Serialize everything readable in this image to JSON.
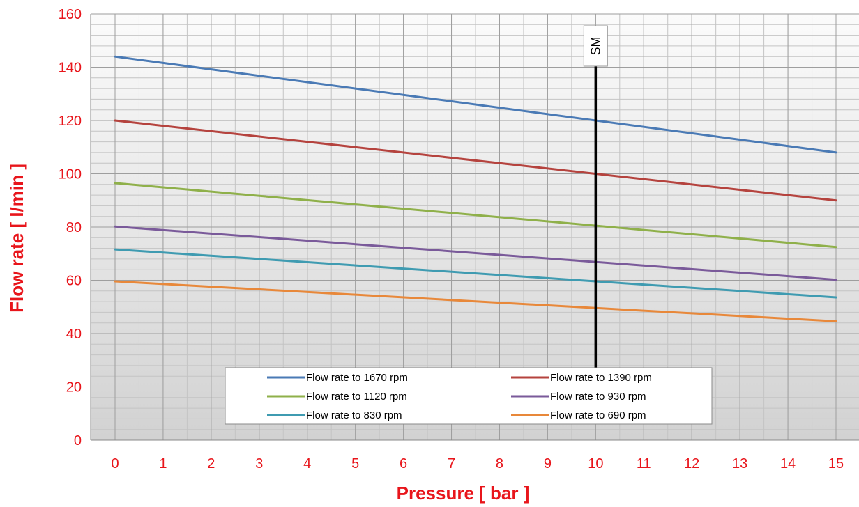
{
  "chart_data": {
    "type": "line",
    "title": "",
    "xlabel": "Pressure [ bar ]",
    "ylabel": "Flow rate [ l/min ]",
    "xlim": [
      0,
      15
    ],
    "ylim": [
      0,
      160
    ],
    "x_ticks": [
      0,
      1,
      2,
      3,
      4,
      5,
      6,
      7,
      8,
      9,
      10,
      11,
      12,
      13,
      14,
      15
    ],
    "y_ticks": [
      0,
      20,
      40,
      60,
      80,
      100,
      120,
      140,
      160
    ],
    "grid": true,
    "legend_position": "bottom-center inside plot",
    "series": [
      {
        "name": "Flow rate to 1670 rpm",
        "color": "#4a7ab5",
        "x": [
          0,
          15
        ],
        "y": [
          144,
          108
        ]
      },
      {
        "name": "Flow rate to 1390 rpm",
        "color": "#b5433e",
        "x": [
          0,
          15
        ],
        "y": [
          120,
          90
        ]
      },
      {
        "name": "Flow rate to 1120 rpm",
        "color": "#8fb04a",
        "x": [
          0,
          15
        ],
        "y": [
          96.5,
          72.5
        ]
      },
      {
        "name": "Flow rate to 930 rpm",
        "color": "#7a5a9a",
        "x": [
          0,
          15
        ],
        "y": [
          80.2,
          60.2
        ]
      },
      {
        "name": "Flow rate to 830 rpm",
        "color": "#3f9bb1",
        "x": [
          0,
          15
        ],
        "y": [
          71.6,
          53.6
        ]
      },
      {
        "name": "Flow rate to 690 rpm",
        "color": "#e8883a",
        "x": [
          0,
          15
        ],
        "y": [
          59.6,
          44.6
        ]
      }
    ],
    "marker_line": {
      "label": "SM",
      "x": 10,
      "color": "#000000"
    },
    "axis_label_color": "#e8151b"
  }
}
